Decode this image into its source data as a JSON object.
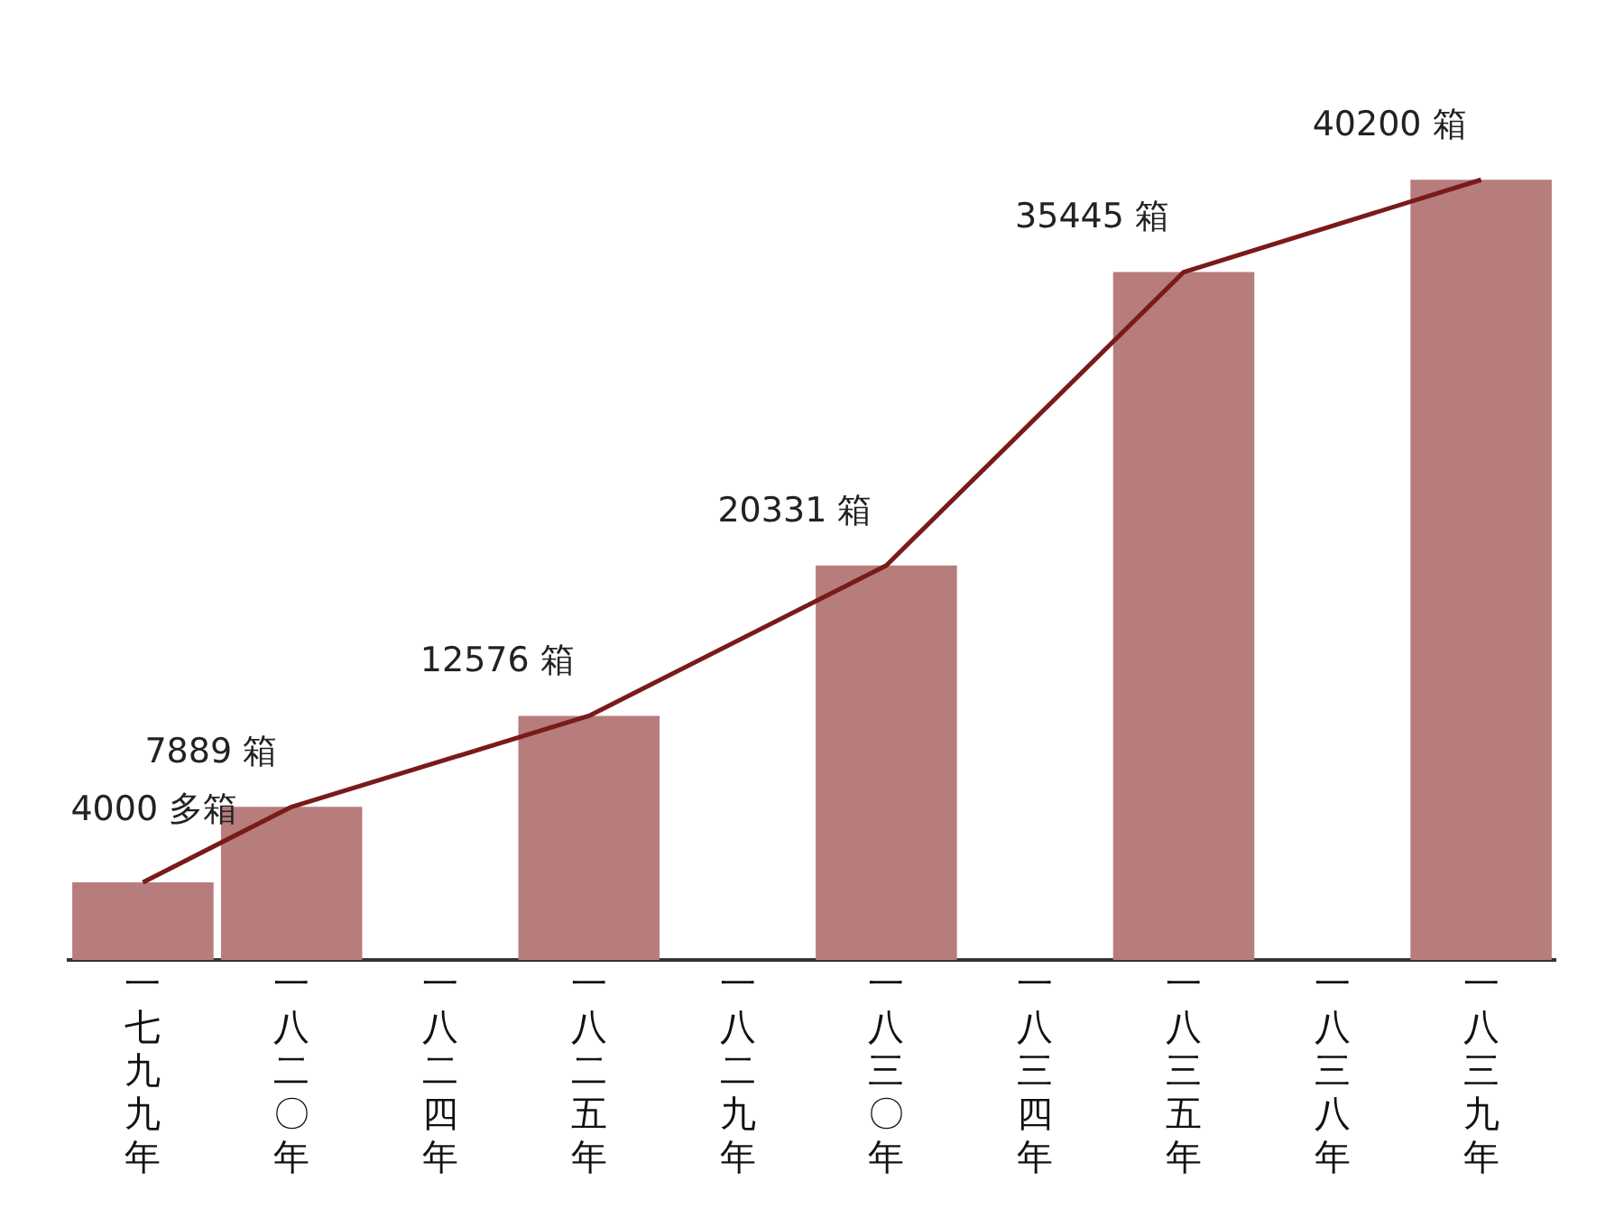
{
  "chart_data": {
    "type": "bar",
    "categories": [
      "一七九九年",
      "一八二〇年",
      "一八二四年",
      "一八二五年",
      "一八二九年",
      "一八三〇年",
      "一八三四年",
      "一八三五年",
      "一八三八年",
      "一八三九年"
    ],
    "tick_labels": "x",
    "grid": false,
    "legend": false,
    "series": [
      {
        "color": "#b77c7c",
        "values": [
          4000,
          7889,
          null,
          12576,
          null,
          20331,
          null,
          35445,
          null,
          40200
        ]
      },
      {
        "type": "line",
        "color": "#7a1a1a",
        "values": [
          4000,
          7889,
          null,
          12576,
          null,
          20331,
          null,
          35445,
          null,
          40200
        ],
        "value_labels": [
          "4000 多箱",
          "7889 箱",
          null,
          "12576 箱",
          null,
          "20331 箱",
          null,
          "35445 箱",
          null,
          "40200 箱"
        ],
        "marker": "none"
      }
    ]
  }
}
